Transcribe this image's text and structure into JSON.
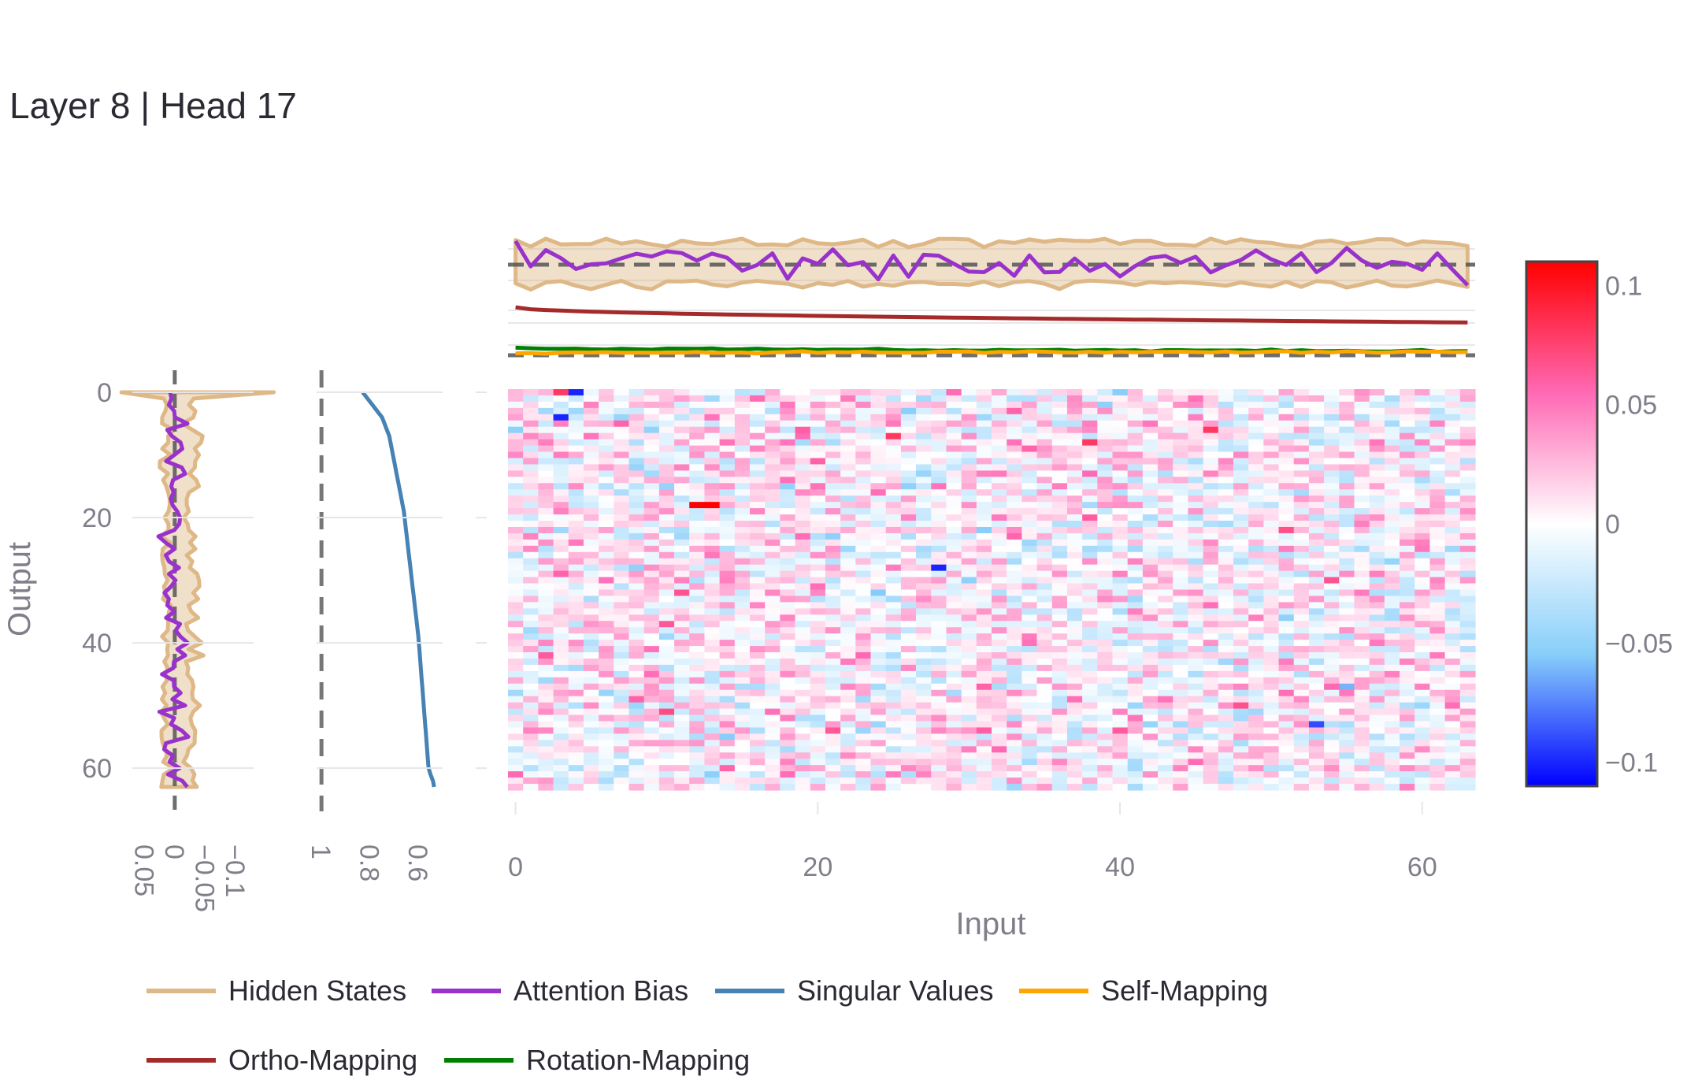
{
  "title": "Layer 8 | Head 17",
  "colors": {
    "hidden_states": "#deb887",
    "hidden_states_fill": "rgba(222,184,135,0.45)",
    "attention_bias": "#9932cc",
    "singular_values": "#4682b4",
    "self_mapping": "#ffa500",
    "ortho_mapping": "#a52a2a",
    "rotation_mapping": "#008000",
    "reference_line": "#555555"
  },
  "legend": [
    {
      "key": "hidden_states",
      "label": "Hidden States"
    },
    {
      "key": "attention_bias",
      "label": "Attention Bias"
    },
    {
      "key": "singular_values",
      "label": "Singular Values"
    },
    {
      "key": "self_mapping",
      "label": "Self-Mapping"
    },
    {
      "key": "ortho_mapping",
      "label": "Ortho-Mapping"
    },
    {
      "key": "rotation_mapping",
      "label": "Rotation-Mapping"
    }
  ],
  "chart_data": {
    "type": "heatmap",
    "xlabel": "Input",
    "ylabel": "Output",
    "x_ticks": [
      0,
      20,
      40,
      60
    ],
    "y_ticks": [
      0,
      20,
      40,
      60
    ],
    "xlim": [
      -0.5,
      63.5
    ],
    "ylim": [
      63.5,
      -0.5
    ],
    "colorscale": [
      [
        0,
        "#0000ff"
      ],
      [
        0.25,
        "#87cefa"
      ],
      [
        0.5,
        "#ffffff"
      ],
      [
        0.75,
        "#ff69b4"
      ],
      [
        1,
        "#ff0000"
      ]
    ],
    "zlim": [
      -0.11,
      0.11
    ],
    "colorbar_ticks": [
      {
        "value": 0.1,
        "label": "0.1"
      },
      {
        "value": 0.05,
        "label": "0.05"
      },
      {
        "value": 0,
        "label": "0"
      },
      {
        "value": -0.05,
        "label": "−0.05"
      },
      {
        "value": -0.1,
        "label": "−0.1"
      }
    ],
    "matrix_size": [
      64,
      64
    ],
    "hot_cells": [
      {
        "row": 18,
        "col": 12,
        "value": 0.11
      },
      {
        "row": 18,
        "col": 13,
        "value": 0.11
      },
      {
        "row": 0,
        "col": 4,
        "value": -0.1
      },
      {
        "row": 0,
        "col": 3,
        "value": 0.08
      },
      {
        "row": 4,
        "col": 3,
        "value": -0.1
      },
      {
        "row": 28,
        "col": 28,
        "value": -0.1
      },
      {
        "row": 7,
        "col": 25,
        "value": 0.08
      },
      {
        "row": 8,
        "col": 38,
        "value": 0.08
      },
      {
        "row": 6,
        "col": 46,
        "value": 0.08
      },
      {
        "row": 53,
        "col": 53,
        "value": -0.09
      }
    ],
    "side_panels": {
      "hidden_states_col": {
        "x_ticks": [
          {
            "value": 0.05,
            "label": "0.05"
          },
          {
            "value": 0,
            "label": "0"
          },
          {
            "value": -0.05,
            "label": "−0.05"
          },
          {
            "value": -0.1,
            "label": "−0.1"
          }
        ],
        "xlim": [
          0.07,
          -0.13
        ]
      },
      "singular_values_col": {
        "x_ticks": [
          {
            "value": 1,
            "label": "1"
          },
          {
            "value": 0.8,
            "label": "0.8"
          },
          {
            "value": 0.6,
            "label": "0.6"
          }
        ],
        "xlim": [
          1.02,
          0.5
        ]
      }
    },
    "singular_values": [
      0.83,
      0.81,
      0.79,
      0.77,
      0.75,
      0.74,
      0.73,
      0.72,
      0.715,
      0.71,
      0.705,
      0.7,
      0.695,
      0.69,
      0.685,
      0.68,
      0.675,
      0.67,
      0.665,
      0.66,
      0.657,
      0.654,
      0.651,
      0.648,
      0.645,
      0.642,
      0.639,
      0.636,
      0.633,
      0.63,
      0.627,
      0.624,
      0.621,
      0.618,
      0.615,
      0.612,
      0.609,
      0.606,
      0.603,
      0.6,
      0.598,
      0.596,
      0.594,
      0.592,
      0.59,
      0.588,
      0.586,
      0.584,
      0.582,
      0.58,
      0.578,
      0.576,
      0.574,
      0.572,
      0.57,
      0.568,
      0.566,
      0.564,
      0.562,
      0.56,
      0.558,
      0.55,
      0.54,
      0.535
    ],
    "mapping_traces": {
      "ortho_mapping": {
        "start": 0.86,
        "end": 0.77
      },
      "rotation_mapping": {
        "start": 0.62,
        "end": 0.6
      },
      "self_mapping": {
        "start": 0.59,
        "end": 0.595
      }
    }
  }
}
